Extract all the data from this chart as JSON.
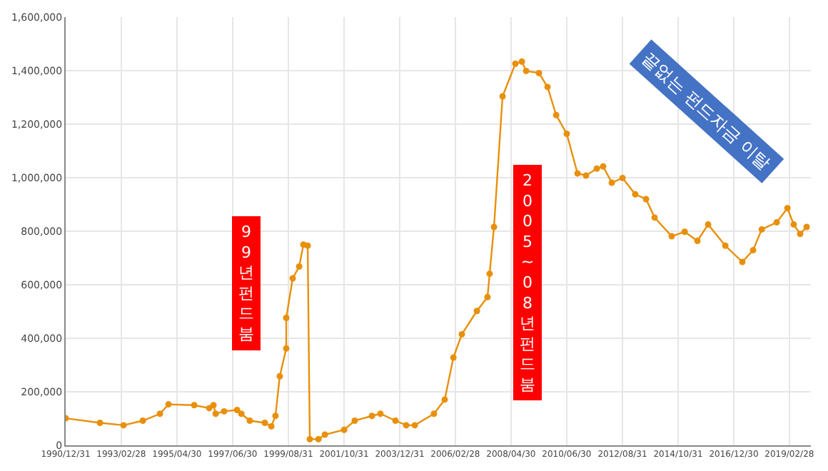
{
  "chart_data": {
    "type": "line",
    "marker": "circle",
    "grid": true,
    "x": [
      "1991-01",
      "1992-05",
      "1993-04",
      "1994-01",
      "1994-09",
      "1995-01",
      "1996-01",
      "1996-08",
      "1996-10",
      "1996-11",
      "1997-03",
      "1997-09",
      "1997-11",
      "1998-03",
      "1998-10",
      "1999-01",
      "1999-03",
      "1999-05",
      "1999-08",
      "1999-08",
      "1999-11",
      "2000-02",
      "2000-04",
      "2000-06",
      "2000-07",
      "2000-11",
      "2001-02",
      "2001-11",
      "2002-04",
      "2002-12",
      "2003-04",
      "2003-11",
      "2004-04",
      "2004-08",
      "2005-05",
      "2005-10",
      "2006-02",
      "2006-06",
      "2007-01",
      "2007-06",
      "2007-07",
      "2007-09",
      "2008-01",
      "2008-07",
      "2008-10",
      "2008-12",
      "2009-06",
      "2009-10",
      "2010-02",
      "2010-07",
      "2010-12",
      "2011-04",
      "2011-09",
      "2011-12",
      "2012-04",
      "2012-09",
      "2013-03",
      "2013-08",
      "2013-12",
      "2014-08",
      "2015-02",
      "2015-08",
      "2016-01",
      "2016-09",
      "2017-05",
      "2017-10",
      "2018-02",
      "2018-09",
      "2019-02",
      "2019-05",
      "2019-08",
      "2019-11"
    ],
    "series": [
      {
        "color": "#e8900c",
        "values": [
          101000,
          84000,
          75000,
          92000,
          118000,
          153000,
          150000,
          139000,
          150000,
          118000,
          127000,
          132000,
          118000,
          92000,
          84000,
          71000,
          110000,
          258000,
          362000,
          476000,
          624000,
          668000,
          750000,
          746000,
          23000,
          23000,
          40000,
          58000,
          92000,
          110000,
          118000,
          92000,
          75000,
          75000,
          118000,
          171000,
          328000,
          415000,
          502000,
          554000,
          641000,
          816000,
          1304000,
          1426000,
          1434000,
          1399000,
          1391000,
          1339000,
          1234000,
          1164000,
          1016000,
          1008000,
          1034000,
          1042000,
          981000,
          999000,
          938000,
          920000,
          851000,
          781000,
          798000,
          764000,
          825000,
          746000,
          685000,
          729000,
          807000,
          833000,
          886000,
          825000,
          790000,
          816000
        ]
      }
    ],
    "xlim": [
      "1990-12-31",
      "2019-12-31"
    ],
    "xticks": [
      {
        "value": "1990-12-31",
        "label": "1990/12/31"
      },
      {
        "value": "1993-02-28",
        "label": "1993/02/28"
      },
      {
        "value": "1995-04-30",
        "label": "1995/04/30"
      },
      {
        "value": "1997-06-30",
        "label": "1997/06/30"
      },
      {
        "value": "1999-08-31",
        "label": "1999/08/31"
      },
      {
        "value": "2001-10-31",
        "label": "2001/10/31"
      },
      {
        "value": "2003-12-31",
        "label": "2003/12/31"
      },
      {
        "value": "2006-02-28",
        "label": "2006/02/28"
      },
      {
        "value": "2008-04-30",
        "label": "2008/04/30"
      },
      {
        "value": "2010-06-30",
        "label": "2010/06/30"
      },
      {
        "value": "2012-08-31",
        "label": "2012/08/31"
      },
      {
        "value": "2014-10-31",
        "label": "2014/10/31"
      },
      {
        "value": "2016-12-30",
        "label": "2016/12/30"
      },
      {
        "value": "2019-02-28",
        "label": "2019/02/28"
      }
    ],
    "ylim": [
      0,
      1600000
    ],
    "yticks": [
      {
        "value": 0,
        "label": "0"
      },
      {
        "value": 200000,
        "label": "200,000"
      },
      {
        "value": 400000,
        "label": "400,000"
      },
      {
        "value": 600000,
        "label": "600,000"
      },
      {
        "value": 800000,
        "label": "800,000"
      },
      {
        "value": 1000000,
        "label": "1,000,000"
      },
      {
        "value": 1200000,
        "label": "1,200,000"
      },
      {
        "value": 1400000,
        "label": "1,400,000"
      },
      {
        "value": 1600000,
        "label": "1,600,000"
      }
    ],
    "annotations": [
      "99년펀드붐",
      "2005~08년펀드붐",
      "끝없는 펀드자금 이탈"
    ]
  }
}
